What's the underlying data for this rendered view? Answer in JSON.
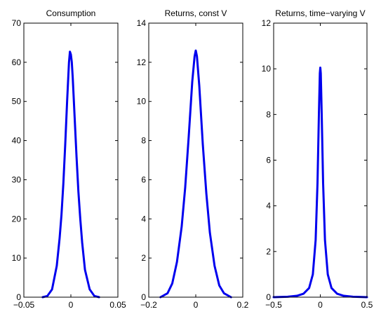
{
  "chart_data": [
    {
      "type": "line",
      "title": "Consumption",
      "xlabel": "",
      "ylabel": "",
      "xlim": [
        -0.05,
        0.05
      ],
      "ylim": [
        0,
        70
      ],
      "xticks": [
        -0.05,
        0,
        0.05
      ],
      "xtick_labels": [
        "−0.05",
        "0",
        "0.05"
      ],
      "yticks": [
        0,
        10,
        20,
        30,
        40,
        50,
        60,
        70
      ],
      "ytick_labels": [
        "0",
        "10",
        "20",
        "30",
        "40",
        "50",
        "60",
        "70"
      ],
      "grid": false,
      "color": "#0000ee",
      "series": [
        {
          "x": [
            -0.03,
            -0.025,
            -0.02,
            -0.015,
            -0.012,
            -0.01,
            -0.008,
            -0.006,
            -0.004,
            -0.002,
            -0.001,
            0,
            0.001,
            0.002,
            0.004,
            0.006,
            0.008,
            0.01,
            0.012,
            0.015,
            0.02,
            0.025,
            0.03
          ],
          "y": [
            0,
            0.3,
            2,
            8,
            15,
            21,
            29,
            39,
            50,
            60,
            62.7,
            62,
            60,
            56,
            46,
            36,
            27,
            20,
            14,
            7,
            2,
            0.3,
            0
          ]
        }
      ]
    },
    {
      "type": "line",
      "title": "Returns, const V",
      "xlabel": "",
      "ylabel": "",
      "xlim": [
        -0.2,
        0.2
      ],
      "ylim": [
        0,
        14
      ],
      "xticks": [
        -0.2,
        0,
        0.2
      ],
      "xtick_labels": [
        "−0.2",
        "0",
        "0.2"
      ],
      "yticks": [
        0,
        2,
        4,
        6,
        8,
        10,
        12,
        14
      ],
      "ytick_labels": [
        "0",
        "2",
        "4",
        "6",
        "8",
        "10",
        "12",
        "14"
      ],
      "grid": false,
      "color": "#0000ee",
      "series": [
        {
          "x": [
            -0.15,
            -0.12,
            -0.1,
            -0.08,
            -0.06,
            -0.045,
            -0.03,
            -0.015,
            -0.005,
            0,
            0.005,
            0.015,
            0.03,
            0.045,
            0.06,
            0.08,
            0.1,
            0.12,
            0.15
          ],
          "y": [
            0,
            0.2,
            0.7,
            1.8,
            3.6,
            5.6,
            8.2,
            11,
            12.3,
            12.6,
            12.3,
            10.8,
            7.8,
            5.3,
            3.3,
            1.6,
            0.6,
            0.2,
            0
          ]
        }
      ]
    },
    {
      "type": "line",
      "title": "Returns, time−varying V",
      "xlabel": "",
      "ylabel": "",
      "xlim": [
        -0.5,
        0.5
      ],
      "ylim": [
        0,
        12
      ],
      "xticks": [
        -0.5,
        0,
        0.5
      ],
      "xtick_labels": [
        "−0.5",
        "0",
        "0.5"
      ],
      "yticks": [
        0,
        2,
        4,
        6,
        8,
        10,
        12
      ],
      "ytick_labels": [
        "0",
        "2",
        "4",
        "6",
        "8",
        "10",
        "12"
      ],
      "grid": false,
      "color": "#0000ee",
      "series": [
        {
          "x": [
            -0.5,
            -0.35,
            -0.25,
            -0.18,
            -0.12,
            -0.08,
            -0.05,
            -0.03,
            -0.015,
            -0.005,
            0,
            0.005,
            0.015,
            0.03,
            0.05,
            0.08,
            0.12,
            0.18,
            0.25,
            0.35,
            0.5
          ],
          "y": [
            0,
            0.02,
            0.06,
            0.15,
            0.4,
            1.0,
            2.5,
            5.0,
            8.0,
            9.8,
            10.05,
            9.8,
            8.0,
            5.0,
            2.5,
            1.0,
            0.4,
            0.15,
            0.06,
            0.02,
            0
          ]
        }
      ]
    }
  ]
}
